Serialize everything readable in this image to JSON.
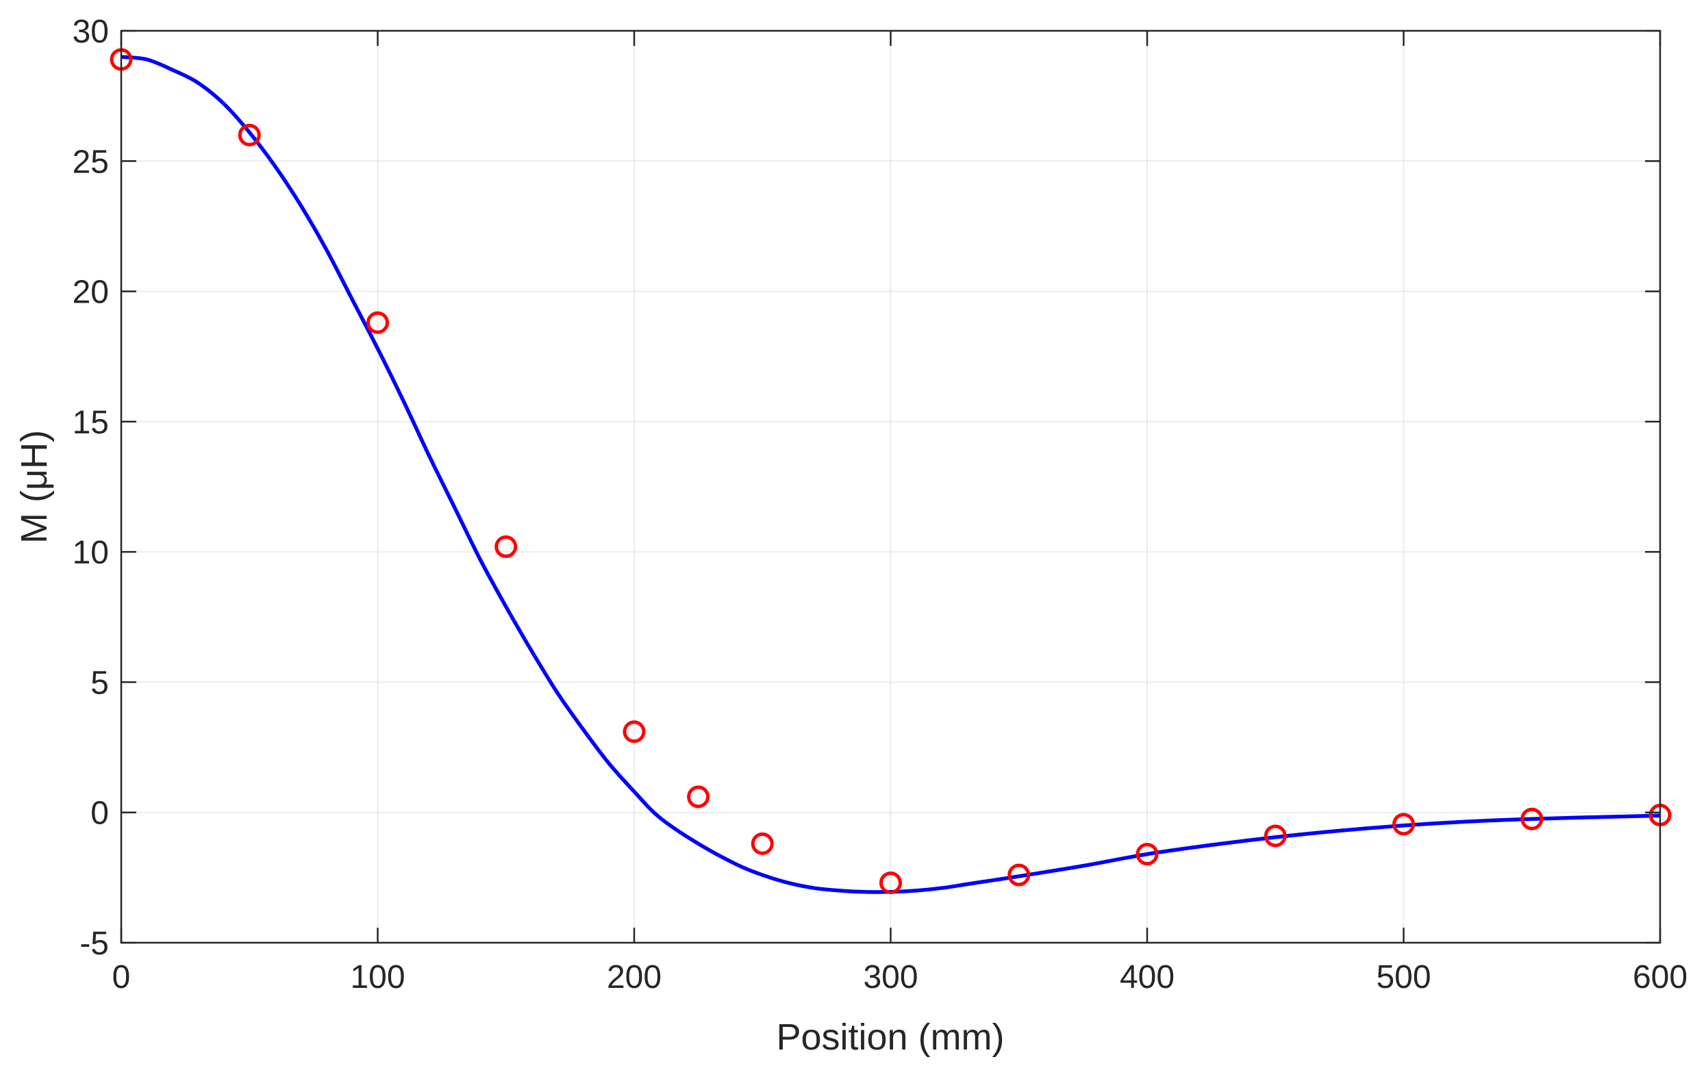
{
  "chart_data": {
    "type": "line",
    "title": "",
    "xlabel": "Position (mm)",
    "ylabel": "M (μH)",
    "xlim": [
      0,
      600
    ],
    "ylim": [
      -5,
      30
    ],
    "xticks": [
      0,
      100,
      200,
      300,
      400,
      500,
      600
    ],
    "yticks": [
      -5,
      0,
      5,
      10,
      15,
      20,
      25,
      30
    ],
    "grid": true,
    "legend": "none",
    "series": [
      {
        "type": "line",
        "color": "#0000ff",
        "x": [
          0,
          10,
          20,
          30,
          40,
          50,
          60,
          70,
          80,
          90,
          100,
          110,
          120,
          130,
          140,
          150,
          160,
          170,
          180,
          190,
          200,
          210,
          225,
          240,
          250,
          260,
          270,
          280,
          290,
          300,
          310,
          320,
          330,
          340,
          350,
          375,
          400,
          425,
          450,
          475,
          500,
          525,
          550,
          575,
          600
        ],
        "y": [
          29.0,
          28.9,
          28.5,
          28.0,
          27.2,
          26.1,
          24.8,
          23.3,
          21.6,
          19.7,
          17.8,
          15.8,
          13.7,
          11.7,
          9.7,
          7.9,
          6.2,
          4.6,
          3.2,
          1.9,
          0.8,
          -0.2,
          -1.2,
          -2.0,
          -2.4,
          -2.7,
          -2.9,
          -3.0,
          -3.05,
          -3.05,
          -3.0,
          -2.9,
          -2.75,
          -2.6,
          -2.45,
          -2.05,
          -1.6,
          -1.25,
          -0.95,
          -0.7,
          -0.5,
          -0.35,
          -0.25,
          -0.18,
          -0.12
        ]
      },
      {
        "type": "scatter",
        "marker": "circle",
        "color": "#ff0000",
        "x": [
          0,
          50,
          100,
          150,
          200,
          225,
          250,
          300,
          350,
          400,
          450,
          500,
          550,
          600
        ],
        "y": [
          28.9,
          26.0,
          18.8,
          10.2,
          3.1,
          0.6,
          -1.2,
          -2.7,
          -2.4,
          -1.6,
          -0.9,
          -0.45,
          -0.25,
          -0.1
        ]
      }
    ]
  }
}
